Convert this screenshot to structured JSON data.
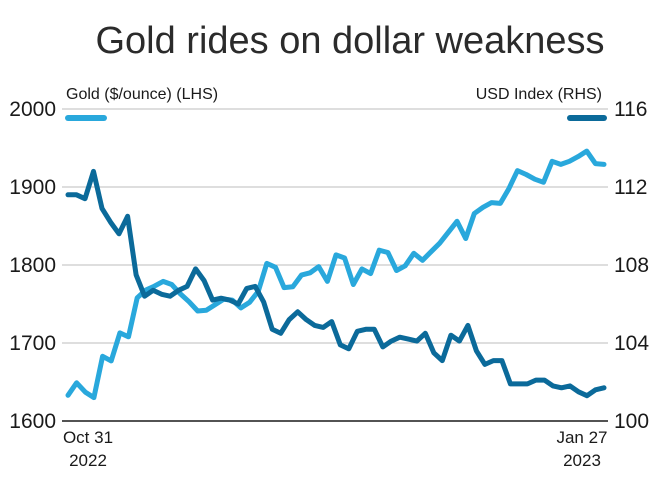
{
  "chart_data": {
    "type": "line",
    "title": "Gold rides on dollar weakness",
    "x_start_label": [
      "Oct 31",
      "2022"
    ],
    "x_end_label": [
      "Jan 27",
      "2023"
    ],
    "left_axis": {
      "label": "Gold ($/ounce) (LHS)",
      "ylim": [
        1600,
        2000
      ],
      "ticks": [
        "2000",
        "1900",
        "1800",
        "1700",
        "1600"
      ]
    },
    "right_axis": {
      "label": "USD Index (RHS)",
      "ylim": [
        100,
        116
      ],
      "ticks": [
        "116",
        "112",
        "108",
        "104",
        "100"
      ]
    },
    "grid": true,
    "series": [
      {
        "name": "Gold ($/ounce) (LHS)",
        "axis": "left",
        "color": "#29a8dc",
        "values": [
          1633,
          1649,
          1637,
          1630,
          1683,
          1677,
          1713,
          1708,
          1758,
          1768,
          1773,
          1779,
          1775,
          1763,
          1753,
          1741,
          1742,
          1749,
          1756,
          1755,
          1745,
          1752,
          1766,
          1802,
          1797,
          1771,
          1772,
          1787,
          1790,
          1798,
          1779,
          1813,
          1809,
          1775,
          1795,
          1789,
          1819,
          1816,
          1793,
          1799,
          1815,
          1806,
          1817,
          1828,
          1842,
          1856,
          1834,
          1866,
          1874,
          1880,
          1879,
          1898,
          1921,
          1916,
          1910,
          1906,
          1933,
          1929,
          1933,
          1939,
          1946,
          1930,
          1929
        ]
      },
      {
        "name": "USD Index (RHS)",
        "axis": "right",
        "color": "#0b6a9a",
        "values": [
          111.6,
          111.6,
          111.4,
          112.8,
          110.9,
          110.2,
          109.6,
          110.5,
          107.5,
          106.4,
          106.7,
          106.5,
          106.4,
          106.7,
          106.9,
          107.8,
          107.2,
          106.2,
          106.3,
          106.2,
          106.0,
          106.8,
          106.9,
          106.1,
          104.7,
          104.5,
          105.2,
          105.6,
          105.2,
          104.9,
          104.8,
          105.1,
          103.9,
          103.7,
          104.6,
          104.7,
          104.7,
          103.8,
          104.1,
          104.3,
          104.2,
          104.1,
          104.5,
          103.5,
          103.1,
          104.4,
          104.1,
          104.9,
          103.6,
          102.9,
          103.1,
          103.1,
          101.9,
          101.9,
          101.9,
          102.1,
          102.1,
          101.8,
          101.7,
          101.8,
          101.5,
          101.3,
          101.6,
          101.7
        ]
      }
    ]
  }
}
